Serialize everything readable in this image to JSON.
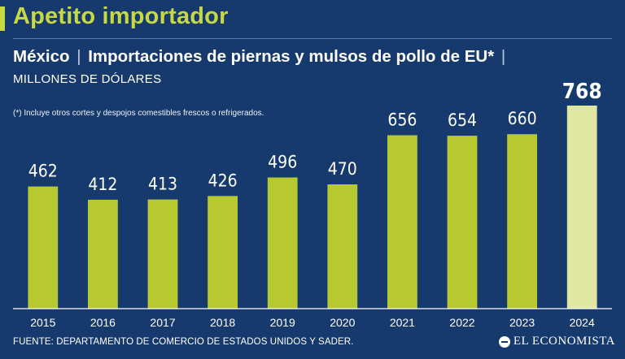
{
  "headline": "Apetito importador",
  "subtitle": {
    "country": "México",
    "separator": "|",
    "title": "Importaciones de piernas y mulsos de pollo de EU*",
    "trailing": "|"
  },
  "units": "MILLONES DE DÓLARES",
  "footnote": "(*) Incluye otros cortes y despojos comestibles frescos o refrigerados.",
  "source": "FUENTE: DEPARTAMENTO DE COMERCIO DE ESTADOS UNIDOS Y SADER.",
  "brand": "EL ECONOMISTA",
  "colors": {
    "background": "#173a6e",
    "bar": "#b6ca2f",
    "bar_highlight": "#dfe8a3",
    "headline": "#c6d843"
  },
  "chart_data": {
    "type": "bar",
    "categories": [
      "2015",
      "2016",
      "2017",
      "2018",
      "2019",
      "2020",
      "2021",
      "2022",
      "2023",
      "2024"
    ],
    "values": [
      462,
      412,
      413,
      426,
      496,
      470,
      656,
      654,
      660,
      768
    ],
    "data_labels": [
      "462",
      "412",
      "413",
      "426",
      "496",
      "470",
      "656",
      "654",
      "660",
      "768"
    ],
    "highlight_index": 9,
    "title": "Importaciones de piernas y mulsos de pollo de EU*",
    "xlabel": "",
    "ylabel": "MILLONES DE DÓLARES",
    "ylim": [
      0,
      768
    ],
    "grid": false,
    "legend": "none"
  }
}
